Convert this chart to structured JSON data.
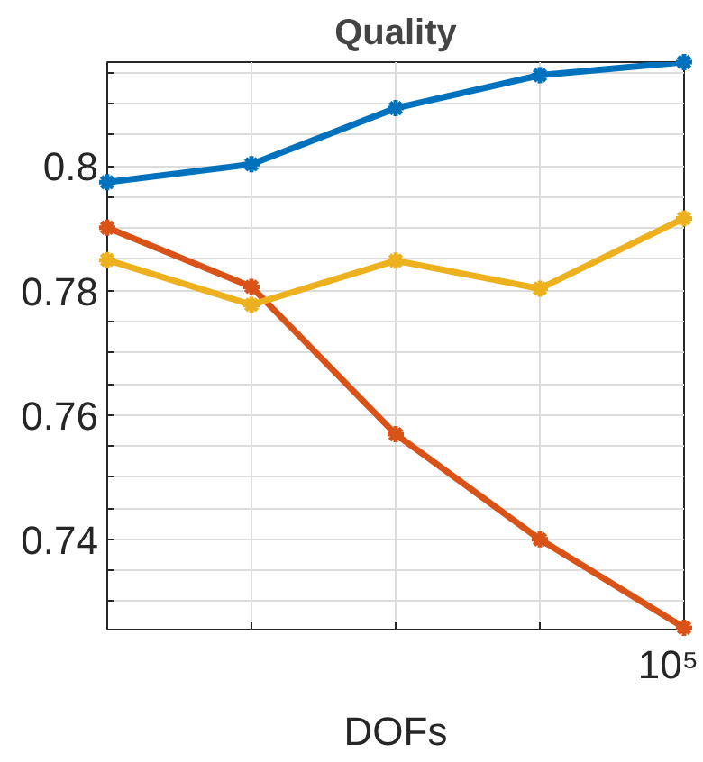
{
  "chart_data": {
    "type": "line",
    "title": "Quality",
    "xlabel": "DOFs",
    "categories": [
      null,
      null,
      null,
      null,
      null
    ],
    "annotations": [
      "10⁵"
    ],
    "series": [
      {
        "color": "#0072bd",
        "values": [
          0.7974,
          0.8003,
          0.8093,
          0.8146,
          0.8167
        ]
      },
      {
        "color": "#d95319",
        "values": [
          0.7901,
          0.7806,
          0.7569,
          0.74,
          0.7258
        ]
      },
      {
        "color": "#edb120",
        "values": [
          0.7849,
          0.7777,
          0.7848,
          0.7803,
          0.7916
        ]
      }
    ],
    "ylim": [
      0.7255,
      0.8167
    ],
    "yticks": [
      {
        "value": 0.73,
        "label": null
      },
      {
        "value": 0.735,
        "label": null
      },
      {
        "value": 0.74,
        "label": "0.74"
      },
      {
        "value": 0.745,
        "label": null
      },
      {
        "value": 0.75,
        "label": null
      },
      {
        "value": 0.755,
        "label": null
      },
      {
        "value": 0.76,
        "label": "0.76"
      },
      {
        "value": 0.765,
        "label": null
      },
      {
        "value": 0.77,
        "label": null
      },
      {
        "value": 0.775,
        "label": null
      },
      {
        "value": 0.78,
        "label": "0.78"
      },
      {
        "value": 0.785,
        "label": null
      },
      {
        "value": 0.79,
        "label": null
      },
      {
        "value": 0.795,
        "label": null
      },
      {
        "value": 0.8,
        "label": "0.8"
      },
      {
        "value": 0.805,
        "label": null
      },
      {
        "value": 0.81,
        "label": null
      },
      {
        "value": 0.815,
        "label": null
      }
    ],
    "grid": true,
    "marker": "cross",
    "line_style": "solid"
  }
}
